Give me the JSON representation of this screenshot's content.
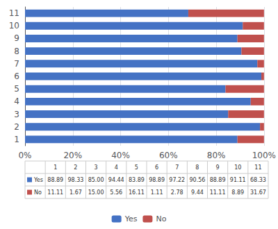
{
  "chart_data": {
    "type": "bar",
    "orientation": "horizontal",
    "stacked": true,
    "categories": [
      "1",
      "2",
      "3",
      "4",
      "5",
      "6",
      "7",
      "8",
      "9",
      "10",
      "11"
    ],
    "series": [
      {
        "name": "Yes",
        "color": "#4472C4",
        "values": [
          88.89,
          98.33,
          85.0,
          94.44,
          83.89,
          98.89,
          97.22,
          90.56,
          88.89,
          91.11,
          68.33
        ],
        "value_labels": [
          "88.89",
          "98.33",
          "85.00",
          "94.44",
          "83.89",
          "98.89",
          "97.22",
          "90.56",
          "88.89",
          "91.11",
          "68.33"
        ]
      },
      {
        "name": "No",
        "color": "#C0504D",
        "values": [
          11.11,
          1.67,
          15.0,
          5.56,
          16.11,
          1.11,
          2.78,
          9.44,
          11.11,
          8.89,
          31.67
        ],
        "value_labels": [
          "11.11",
          "1.67",
          "15.00",
          "5.56",
          "16.11",
          "1.11",
          "2.78",
          "9.44",
          "11.11",
          "8.89",
          "31.67"
        ]
      }
    ],
    "xlim": [
      0,
      100
    ],
    "xticks": [
      {
        "value": 0,
        "label": "0%"
      },
      {
        "value": 20,
        "label": "20%"
      },
      {
        "value": 40,
        "label": "40%"
      },
      {
        "value": 60,
        "label": "60%"
      },
      {
        "value": 80,
        "label": "80%"
      },
      {
        "value": 100,
        "label": "100%"
      }
    ],
    "grid": true,
    "legend": "bottom"
  }
}
